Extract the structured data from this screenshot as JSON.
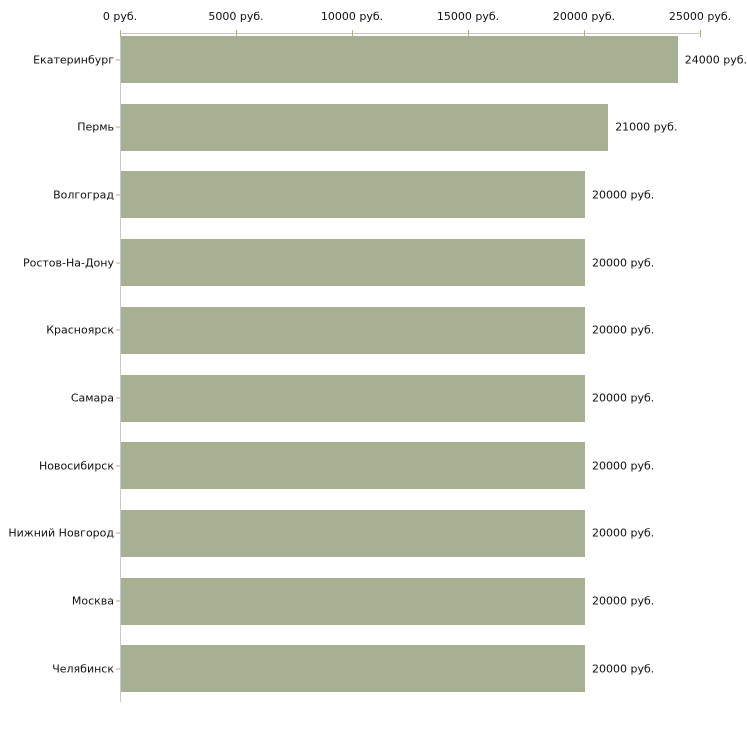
{
  "chart_data": {
    "type": "bar",
    "orientation": "horizontal",
    "title": "",
    "categories": [
      "Екатеринбург",
      "Пермь",
      "Волгоград",
      "Ростов-На-Дону",
      "Красноярск",
      "Самара",
      "Новосибирск",
      "Нижний Новгород",
      "Москва",
      "Челябинск"
    ],
    "values": [
      24000,
      21000,
      20000,
      20000,
      20000,
      20000,
      20000,
      20000,
      20000,
      20000
    ],
    "value_labels": [
      "24000 руб.",
      "21000 руб.",
      "20000 руб.",
      "20000 руб.",
      "20000 руб.",
      "20000 руб.",
      "20000 руб.",
      "20000 руб.",
      "20000 руб.",
      "20000 руб."
    ],
    "unit": "руб.",
    "x_axis": {
      "position": "top",
      "range": [
        0,
        25000
      ],
      "tick_values": [
        0,
        5000,
        10000,
        15000,
        20000,
        25000
      ],
      "tick_labels": [
        "0 руб.",
        "5000 руб.",
        "10000 руб.",
        "15000 руб.",
        "20000 руб.",
        "25000 руб."
      ]
    },
    "grid": false,
    "legend": false,
    "colors": {
      "bar": "#a8b093",
      "tick": "#b2ae86",
      "axis_line": "#c8c8c4",
      "text": "#111111",
      "background": "#ffffff"
    }
  }
}
